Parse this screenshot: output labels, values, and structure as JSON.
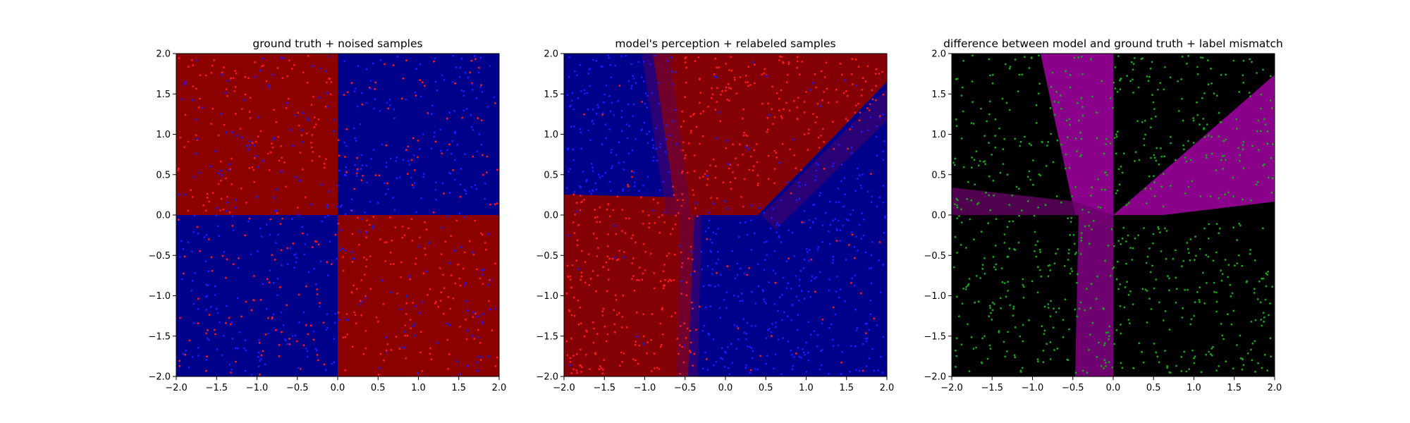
{
  "figure": {
    "background": "#ffffff"
  },
  "chart_data": [
    {
      "type": "heatmap",
      "title": "ground truth + noised samples",
      "xlabel": "",
      "ylabel": "",
      "xlim": [
        -2.0,
        2.0
      ],
      "ylim": [
        -2.0,
        2.0
      ],
      "x_ticks": [
        "−2.0",
        "−1.5",
        "−1.0",
        "−0.5",
        "0.0",
        "0.5",
        "1.0",
        "1.5",
        "2.0"
      ],
      "y_ticks": [
        "−2.0",
        "−1.5",
        "−1.0",
        "−0.5",
        "0.0",
        "0.5",
        "1.0",
        "1.5",
        "2.0"
      ],
      "grid": false,
      "legend": "none",
      "background_map": "xor-quadrants",
      "colors": {
        "class_a": "#8b0000",
        "class_b": "#00008b"
      },
      "quadrants": [
        {
          "x_range": [
            -2.0,
            0.0
          ],
          "y_range": [
            0.0,
            2.0
          ],
          "label": "red"
        },
        {
          "x_range": [
            0.0,
            2.0
          ],
          "y_range": [
            0.0,
            2.0
          ],
          "label": "blue"
        },
        {
          "x_range": [
            -2.0,
            0.0
          ],
          "y_range": [
            -2.0,
            0.0
          ],
          "label": "blue"
        },
        {
          "x_range": [
            0.0,
            2.0
          ],
          "y_range": [
            -2.0,
            0.0
          ],
          "label": "red"
        }
      ],
      "scatter": {
        "marker_size": 3,
        "colors": {
          "red": "#ff1a1a",
          "blue": "#1a1aff"
        },
        "seed": 11,
        "n_points": 900,
        "distribution": "uniform over [-2,2]×[-2,2]",
        "label_noise": 0.35
      }
    },
    {
      "type": "heatmap",
      "title": "model's perception + relabeled samples",
      "xlabel": "",
      "ylabel": "",
      "xlim": [
        -2.0,
        2.0
      ],
      "ylim": [
        -2.0,
        2.0
      ],
      "x_ticks": [
        "−2.0",
        "−1.5",
        "−1.0",
        "−0.5",
        "0.0",
        "0.5",
        "1.0",
        "1.5",
        "2.0"
      ],
      "y_ticks": [
        "−2.0",
        "−1.5",
        "−1.0",
        "−0.5",
        "0.0",
        "0.5",
        "1.0",
        "1.5",
        "2.0"
      ],
      "grid": false,
      "legend": "none",
      "background_map": "learned-boundary",
      "colors": {
        "class_a": "#8b0000",
        "class_b": "#00008b"
      },
      "decision_regions": {
        "red": [
          "top wedge (approx. x ∈ [-0.6, 2], y > 0 above a line rising toward (2, 1.8))",
          "bottom-left region (x < -0.3, y < 0.2)"
        ],
        "blue": [
          "upper-left region (x < -0.6, y > 0.3)",
          "right/bottom-right region below the diagonal boundary and right of x ≈ -0.3"
        ]
      },
      "scatter": {
        "marker_size": 3,
        "colors": {
          "red": "#ff1a1a",
          "blue": "#1a1aff"
        },
        "seed": 23,
        "n_points": 1100,
        "distribution": "uniform over [-2,2]×[-2,2]",
        "label_noise": 0.06
      }
    },
    {
      "type": "heatmap",
      "title": "difference between model and ground truth + label mismatch",
      "xlabel": "",
      "ylabel": "",
      "xlim": [
        -2.0,
        2.0
      ],
      "ylim": [
        -2.0,
        2.0
      ],
      "x_ticks": [
        "−2.0",
        "−1.5",
        "−1.0",
        "−0.5",
        "0.0",
        "0.5",
        "1.0",
        "1.5",
        "2.0"
      ],
      "y_ticks": [
        "−2.0",
        "−1.5",
        "−1.0",
        "−0.5",
        "0.0",
        "0.5",
        "1.0",
        "1.5",
        "2.0"
      ],
      "grid": false,
      "legend": "none",
      "background_map": "model-vs-truth-difference",
      "colors": {
        "match": "#000000",
        "mismatch": "#8b008b"
      },
      "scatter": {
        "marker_size": 3,
        "colors": {
          "mismatch": "#1aa31a"
        },
        "seed": 37,
        "n_points": 800,
        "distribution": "uniform over [-2,2]×[-2,2]",
        "exclude_band": "diagonal mismatch band"
      }
    }
  ]
}
